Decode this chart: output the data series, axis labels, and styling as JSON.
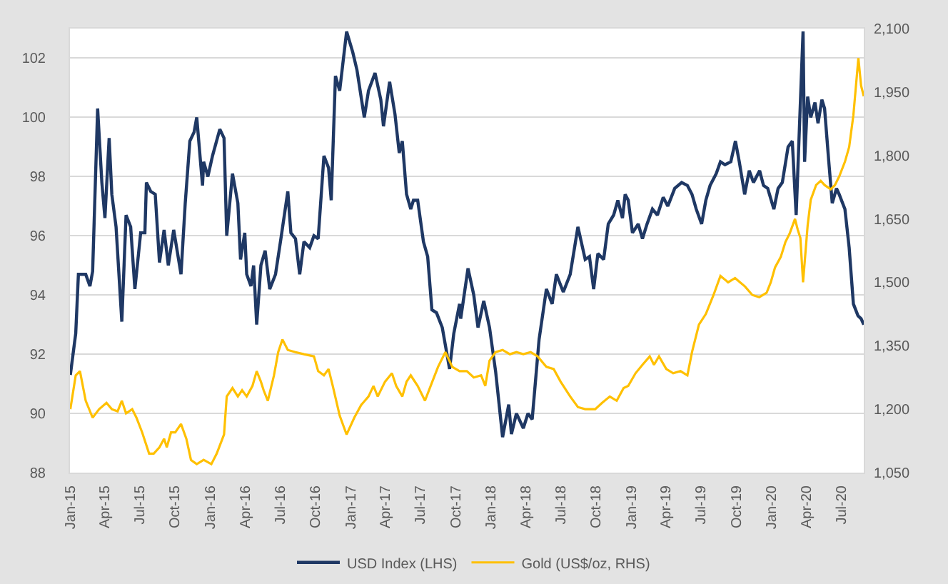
{
  "chart_data": {
    "type": "line",
    "series": [
      {
        "name": "USD Index (LHS)",
        "color": "#1f3864",
        "x": [
          "2015-01-02",
          "2015-01-16",
          "2015-01-23",
          "2015-02-11",
          "2015-02-22",
          "2015-03-01",
          "2015-03-14",
          "2015-03-25",
          "2015-04-02",
          "2015-04-13",
          "2015-04-20",
          "2015-05-01",
          "2015-05-16",
          "2015-05-27",
          "2015-06-08",
          "2015-06-19",
          "2015-07-04",
          "2015-07-15",
          "2015-07-19",
          "2015-07-30",
          "2015-08-11",
          "2015-08-22",
          "2015-09-03",
          "2015-09-14",
          "2015-09-28",
          "2015-10-17",
          "2015-10-28",
          "2015-11-09",
          "2015-11-20",
          "2015-11-27",
          "2015-12-12",
          "2015-12-15",
          "2015-12-26",
          "2016-01-07",
          "2016-01-26",
          "2016-02-06",
          "2016-02-13",
          "2016-02-28",
          "2016-03-13",
          "2016-03-20",
          "2016-03-31",
          "2016-04-05",
          "2016-04-16",
          "2016-04-23",
          "2016-05-01",
          "2016-05-12",
          "2016-05-23",
          "2016-06-04",
          "2016-06-19",
          "2016-07-03",
          "2016-07-21",
          "2016-07-29",
          "2016-08-10",
          "2016-08-21",
          "2016-09-01",
          "2016-09-16",
          "2016-09-27",
          "2016-10-08",
          "2016-10-23",
          "2016-11-04",
          "2016-11-11",
          "2016-11-22",
          "2016-12-03",
          "2016-12-21",
          "2017-01-06",
          "2017-01-17",
          "2017-02-05",
          "2017-02-16",
          "2017-03-05",
          "2017-03-20",
          "2017-03-27",
          "2017-04-12",
          "2017-04-26",
          "2017-05-07",
          "2017-05-15",
          "2017-05-26",
          "2017-06-06",
          "2017-06-13",
          "2017-06-24",
          "2017-07-09",
          "2017-07-20",
          "2017-07-31",
          "2017-08-12",
          "2017-08-27",
          "2017-09-15",
          "2017-09-26",
          "2017-10-11",
          "2017-10-14",
          "2017-11-02",
          "2017-11-17",
          "2017-11-28",
          "2017-12-13",
          "2017-12-28",
          "2018-01-13",
          "2018-01-31",
          "2018-02-16",
          "2018-02-23",
          "2018-03-08",
          "2018-03-26",
          "2018-04-07",
          "2018-04-18",
          "2018-05-06",
          "2018-05-25",
          "2018-06-09",
          "2018-06-20",
          "2018-07-08",
          "2018-07-26",
          "2018-08-15",
          "2018-09-03",
          "2018-09-14",
          "2018-09-25",
          "2018-10-06",
          "2018-10-21",
          "2018-11-02",
          "2018-11-16",
          "2018-11-27",
          "2018-12-09",
          "2018-12-16",
          "2018-12-24",
          "2019-01-04",
          "2019-01-19",
          "2019-01-30",
          "2019-02-11",
          "2019-02-25",
          "2019-03-10",
          "2019-03-25",
          "2019-04-06",
          "2019-04-24",
          "2019-05-12",
          "2019-05-27",
          "2019-06-08",
          "2019-06-19",
          "2019-07-03",
          "2019-07-14",
          "2019-07-25",
          "2019-08-10",
          "2019-08-21",
          "2019-09-02",
          "2019-09-17",
          "2019-09-29",
          "2019-10-09",
          "2019-10-23",
          "2019-11-04",
          "2019-11-15",
          "2019-12-01",
          "2019-12-11",
          "2019-12-22",
          "2020-01-07",
          "2020-01-18",
          "2020-01-29",
          "2020-02-13",
          "2020-02-24",
          "2020-03-05",
          "2020-03-23",
          "2020-03-27",
          "2020-04-04",
          "2020-04-12",
          "2020-04-23",
          "2020-05-01",
          "2020-05-11",
          "2020-05-18",
          "2020-05-29",
          "2020-06-07",
          "2020-06-18",
          "2020-06-25",
          "2020-07-10",
          "2020-07-21",
          "2020-08-01",
          "2020-08-13",
          "2020-08-21",
          "2020-08-28"
        ],
        "values": [
          91.3,
          92.7,
          94.7,
          94.7,
          94.3,
          94.8,
          100.3,
          97.8,
          96.6,
          99.3,
          97.4,
          96.3,
          93.1,
          96.7,
          96.3,
          94.2,
          96.1,
          96.1,
          97.8,
          97.5,
          97.4,
          95.1,
          96.2,
          95.0,
          96.2,
          94.7,
          97.1,
          99.2,
          99.5,
          100.0,
          97.7,
          98.5,
          98.0,
          98.7,
          99.6,
          99.3,
          96.0,
          98.1,
          97.1,
          95.2,
          96.1,
          94.7,
          94.3,
          95.0,
          93.0,
          95.0,
          95.5,
          94.2,
          94.7,
          95.9,
          97.5,
          96.1,
          95.9,
          94.7,
          95.8,
          95.6,
          96.0,
          95.9,
          98.7,
          98.3,
          97.2,
          101.4,
          100.9,
          102.9,
          102.2,
          101.6,
          100.0,
          100.9,
          101.5,
          100.6,
          99.7,
          101.2,
          100.1,
          98.8,
          99.2,
          97.4,
          96.9,
          97.2,
          97.2,
          95.8,
          95.3,
          93.5,
          93.4,
          92.9,
          91.5,
          92.7,
          93.7,
          93.2,
          94.9,
          94.0,
          92.9,
          93.8,
          92.9,
          91.4,
          89.2,
          90.3,
          89.3,
          90.0,
          89.5,
          90.0,
          89.8,
          92.5,
          94.2,
          93.7,
          94.7,
          94.1,
          94.7,
          96.3,
          95.2,
          95.3,
          94.2,
          95.4,
          95.2,
          96.4,
          96.7,
          97.2,
          96.6,
          97.4,
          97.2,
          96.1,
          96.4,
          95.9,
          96.4,
          96.9,
          96.7,
          97.3,
          97.0,
          97.6,
          97.8,
          97.7,
          97.4,
          96.9,
          96.4,
          97.2,
          97.7,
          98.1,
          98.5,
          98.4,
          98.5,
          99.2,
          98.5,
          97.4,
          98.2,
          97.8,
          98.2,
          97.7,
          97.6,
          96.9,
          97.6,
          97.8,
          99.0,
          99.2,
          96.7,
          102.9,
          98.5,
          100.7,
          100.0,
          100.5,
          99.8,
          100.6,
          100.3,
          98.5,
          97.1,
          97.6,
          97.4,
          96.9,
          95.6,
          93.7,
          93.3,
          93.2,
          93.0
        ]
      },
      {
        "name": "Gold (US$/oz, RHS)",
        "color": "#ffc000",
        "axis": "y2",
        "x": [
          "2015-01-02",
          "2015-01-16",
          "2015-01-27",
          "2015-02-11",
          "2015-03-01",
          "2015-03-18",
          "2015-04-06",
          "2015-04-20",
          "2015-05-05",
          "2015-05-16",
          "2015-05-27",
          "2015-06-12",
          "2015-06-23",
          "2015-07-08",
          "2015-07-26",
          "2015-08-07",
          "2015-08-22",
          "2015-09-03",
          "2015-09-10",
          "2015-09-21",
          "2015-10-02",
          "2015-10-17",
          "2015-10-31",
          "2015-11-12",
          "2015-11-27",
          "2015-12-15",
          "2016-01-04",
          "2016-01-18",
          "2016-02-06",
          "2016-02-13",
          "2016-02-28",
          "2016-03-13",
          "2016-03-24",
          "2016-04-05",
          "2016-04-20",
          "2016-05-01",
          "2016-05-12",
          "2016-05-19",
          "2016-05-30",
          "2016-06-15",
          "2016-06-26",
          "2016-07-07",
          "2016-07-21",
          "2016-08-10",
          "2016-09-01",
          "2016-09-27",
          "2016-10-08",
          "2016-10-23",
          "2016-11-04",
          "2016-11-15",
          "2016-12-03",
          "2016-12-21",
          "2017-01-10",
          "2017-01-28",
          "2017-02-16",
          "2017-03-01",
          "2017-03-12",
          "2017-03-31",
          "2017-04-18",
          "2017-04-29",
          "2017-05-15",
          "2017-05-26",
          "2017-06-06",
          "2017-06-24",
          "2017-07-13",
          "2017-08-01",
          "2017-08-16",
          "2017-09-04",
          "2017-09-22",
          "2017-10-11",
          "2017-10-30",
          "2017-11-17",
          "2017-12-06",
          "2017-12-17",
          "2017-12-28",
          "2018-01-13",
          "2018-01-31",
          "2018-02-19",
          "2018-03-08",
          "2018-03-26",
          "2018-04-14",
          "2018-05-02",
          "2018-05-25",
          "2018-06-13",
          "2018-07-01",
          "2018-07-26",
          "2018-08-15",
          "2018-09-03",
          "2018-09-29",
          "2018-10-17",
          "2018-11-06",
          "2018-11-24",
          "2018-12-12",
          "2018-12-24",
          "2019-01-12",
          "2019-01-30",
          "2019-02-18",
          "2019-03-01",
          "2019-03-14",
          "2019-04-02",
          "2019-04-20",
          "2019-05-09",
          "2019-05-27",
          "2019-06-08",
          "2019-06-26",
          "2019-07-14",
          "2019-08-03",
          "2019-08-21",
          "2019-09-10",
          "2019-09-28",
          "2019-10-24",
          "2019-11-12",
          "2019-11-30",
          "2019-12-19",
          "2019-12-30",
          "2020-01-10",
          "2020-01-25",
          "2020-02-06",
          "2020-02-17",
          "2020-03-02",
          "2020-03-09",
          "2020-03-16",
          "2020-03-23",
          "2020-04-04",
          "2020-04-12",
          "2020-04-26",
          "2020-05-08",
          "2020-05-18",
          "2020-06-03",
          "2020-06-14",
          "2020-06-25",
          "2020-07-10",
          "2020-07-21",
          "2020-08-01",
          "2020-08-14",
          "2020-08-21",
          "2020-08-28"
        ],
        "values": [
          1200,
          1280,
          1290,
          1220,
          1180,
          1200,
          1215,
          1200,
          1195,
          1220,
          1190,
          1200,
          1180,
          1145,
          1095,
          1095,
          1110,
          1130,
          1110,
          1145,
          1145,
          1165,
          1130,
          1080,
          1070,
          1080,
          1070,
          1095,
          1140,
          1230,
          1250,
          1230,
          1245,
          1230,
          1255,
          1290,
          1265,
          1245,
          1220,
          1280,
          1335,
          1365,
          1340,
          1335,
          1330,
          1325,
          1290,
          1280,
          1295,
          1255,
          1185,
          1140,
          1180,
          1210,
          1230,
          1255,
          1230,
          1265,
          1285,
          1255,
          1230,
          1265,
          1280,
          1255,
          1220,
          1265,
          1300,
          1335,
          1300,
          1290,
          1290,
          1275,
          1280,
          1255,
          1315,
          1335,
          1340,
          1330,
          1335,
          1330,
          1335,
          1325,
          1300,
          1295,
          1265,
          1230,
          1205,
          1200,
          1200,
          1215,
          1230,
          1220,
          1250,
          1255,
          1285,
          1305,
          1325,
          1305,
          1325,
          1295,
          1285,
          1290,
          1280,
          1335,
          1400,
          1425,
          1470,
          1515,
          1500,
          1510,
          1490,
          1470,
          1465,
          1475,
          1500,
          1535,
          1560,
          1595,
          1615,
          1650,
          1625,
          1605,
          1500,
          1635,
          1695,
          1730,
          1740,
          1730,
          1720,
          1730,
          1750,
          1785,
          1820,
          1895,
          2030,
          1965,
          1940
        ]
      }
    ],
    "xlim": [
      "2015-01-01",
      "2020-08-28"
    ],
    "xticks": [
      {
        "value": "2015-01-01",
        "label": "Jan-15"
      },
      {
        "value": "2015-04-01",
        "label": "Apr-15"
      },
      {
        "value": "2015-07-01",
        "label": "Jul-15"
      },
      {
        "value": "2015-10-01",
        "label": "Oct-15"
      },
      {
        "value": "2016-01-01",
        "label": "Jan-16"
      },
      {
        "value": "2016-04-01",
        "label": "Apr-16"
      },
      {
        "value": "2016-07-01",
        "label": "Jul-16"
      },
      {
        "value": "2016-10-01",
        "label": "Oct-16"
      },
      {
        "value": "2017-01-01",
        "label": "Jan-17"
      },
      {
        "value": "2017-04-01",
        "label": "Apr-17"
      },
      {
        "value": "2017-07-01",
        "label": "Jul-17"
      },
      {
        "value": "2017-10-01",
        "label": "Oct-17"
      },
      {
        "value": "2018-01-01",
        "label": "Jan-18"
      },
      {
        "value": "2018-04-01",
        "label": "Apr-18"
      },
      {
        "value": "2018-07-01",
        "label": "Jul-18"
      },
      {
        "value": "2018-10-01",
        "label": "Oct-18"
      },
      {
        "value": "2019-01-01",
        "label": "Jan-19"
      },
      {
        "value": "2019-04-01",
        "label": "Apr-19"
      },
      {
        "value": "2019-07-01",
        "label": "Jul-19"
      },
      {
        "value": "2019-10-01",
        "label": "Oct-19"
      },
      {
        "value": "2020-01-01",
        "label": "Jan-20"
      },
      {
        "value": "2020-04-01",
        "label": "Apr-20"
      },
      {
        "value": "2020-07-01",
        "label": "Jul-20"
      }
    ],
    "ylim": [
      88,
      103
    ],
    "yticks": [
      88,
      90,
      92,
      94,
      96,
      98,
      100,
      102
    ],
    "y2lim": [
      1050,
      2100
    ],
    "y2ticks": [
      {
        "value": 1050,
        "label": "1,050"
      },
      {
        "value": 1200,
        "label": "1,200"
      },
      {
        "value": 1350,
        "label": "1,350"
      },
      {
        "value": 1500,
        "label": "1,500"
      },
      {
        "value": 1650,
        "label": "1,650"
      },
      {
        "value": 1800,
        "label": "1,800"
      },
      {
        "value": 1950,
        "label": "1,950"
      },
      {
        "value": 2100,
        "label": "2,100"
      }
    ],
    "grid": "y",
    "legend": "bottom",
    "line_style": "solid"
  }
}
